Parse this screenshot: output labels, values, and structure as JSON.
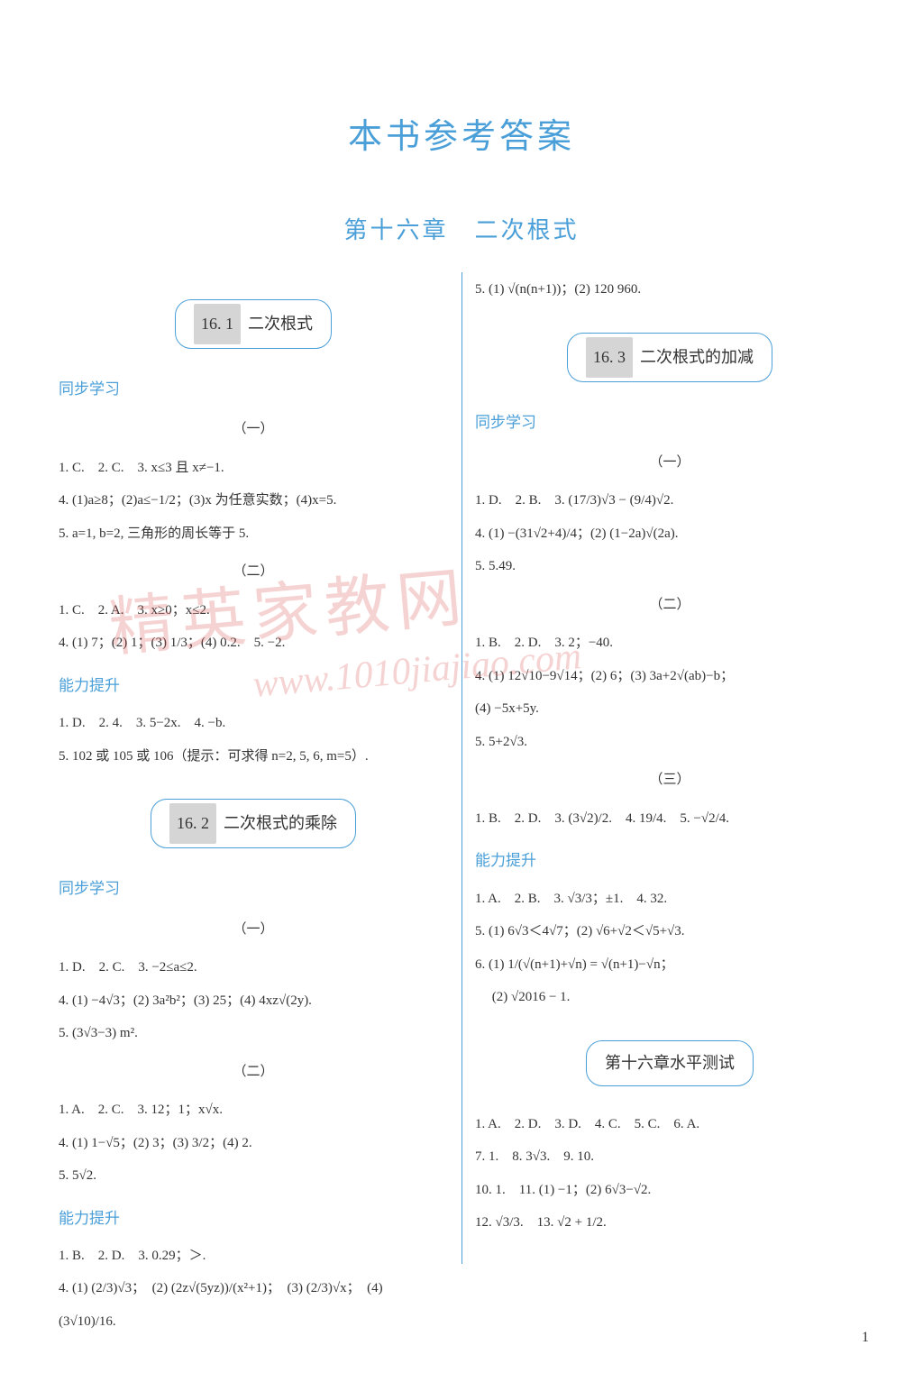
{
  "colors": {
    "accent": "#4a9fd8",
    "text": "#333333",
    "background": "#ffffff",
    "numbox_bg": "#d5d5d5",
    "watermark": "rgba(220,80,80,0.25)"
  },
  "mainTitle": "本书参考答案",
  "chapterTitle": "第十六章　二次根式",
  "pageNumber": "1",
  "watermark": {
    "text1": "精英家教网",
    "text2": "www.1010jiajiao.com"
  },
  "leftColumn": {
    "section161": {
      "num": "16. 1",
      "title": "二次根式",
      "sync": "同步学习",
      "part1": {
        "label": "（一）",
        "lines": [
          "1. C.　2. C.　3. x≤3 且 x≠−1.",
          "4. (1)a≥8；(2)a≤−1/2；(3)x 为任意实数；(4)x=5.",
          "5. a=1, b=2, 三角形的周长等于 5."
        ]
      },
      "part2": {
        "label": "（二）",
        "lines": [
          "1. C.　2. A.　3. x≥0；x≤2.",
          "4. (1) 7；(2) 1；(3) 1/3；(4) 0.2.　5. −2."
        ]
      },
      "ability": {
        "label": "能力提升",
        "lines": [
          "1. D.　2. 4.　3. 5−2x.　4. −b.",
          "5. 102 或 105 或 106（提示：可求得 n=2, 5, 6, m=5）."
        ]
      }
    },
    "section162": {
      "num": "16. 2",
      "title": "二次根式的乘除",
      "sync": "同步学习",
      "part1": {
        "label": "（一）",
        "lines": [
          "1. D.　2. C.　3. −2≤a≤2.",
          "4. (1) −4√3；(2) 3a²b²；(3) 25；(4) 4xz√(2y).",
          "5. (3√3−3) m²."
        ]
      },
      "part2": {
        "label": "（二）",
        "lines": [
          "1. A.　2. C.　3. 12；1；x√x.",
          "4. (1) 1−√5；(2) 3；(3) 3/2；(4) 2.",
          "5. 5√2."
        ]
      },
      "ability": {
        "label": "能力提升",
        "lines": [
          "1. B.　2. D.　3. 0.29；＞.",
          "4. (1) (2/3)√3；　(2) (2z√(5yz))/(x²+1)；　(3) (2/3)√x；　(4)",
          "(3√10)/16."
        ]
      }
    }
  },
  "rightColumn": {
    "topLine": "5. (1) √(n(n+1))；(2) 120 960.",
    "section163": {
      "num": "16. 3",
      "title": "二次根式的加减",
      "sync": "同步学习",
      "part1": {
        "label": "（一）",
        "lines": [
          "1. D.　2. B.　3. (17/3)√3 − (9/4)√2.",
          "4. (1) −(31√2+4)/4；(2) (1−2a)√(2a).",
          "5. 5.49."
        ]
      },
      "part2": {
        "label": "（二）",
        "lines": [
          "1. B.　2. D.　3. 2；−40.",
          "4. (1) 12√10−9√14；(2) 6；(3) 3a+2√(ab)−b；",
          "(4) −5x+5y.",
          "5. 5+2√3."
        ]
      },
      "part3": {
        "label": "（三）",
        "lines": [
          "1. B.　2. D.　3. (3√2)/2.　4. 19/4.　5. −√2/4."
        ]
      },
      "ability": {
        "label": "能力提升",
        "lines": [
          "1. A.　2. B.　3. √3/3；±1.　4. 32.",
          "5. (1) 6√3＜4√7；(2) √6+√2＜√5+√3.",
          "6. (1) 1/(√(n+1)+√n) = √(n+1)−√n；",
          "　 (2) √2016 − 1."
        ]
      }
    },
    "test": {
      "title": "第十六章水平测试",
      "lines": [
        "1. A.　2. D.　3. D.　4. C.　5. C.　6. A.",
        "7. 1.　8. 3√3.　9. 10.",
        "10. 1.　11. (1) −1；(2) 6√3−√2.",
        "12. √3/3.　13. √2 + 1/2."
      ]
    }
  }
}
